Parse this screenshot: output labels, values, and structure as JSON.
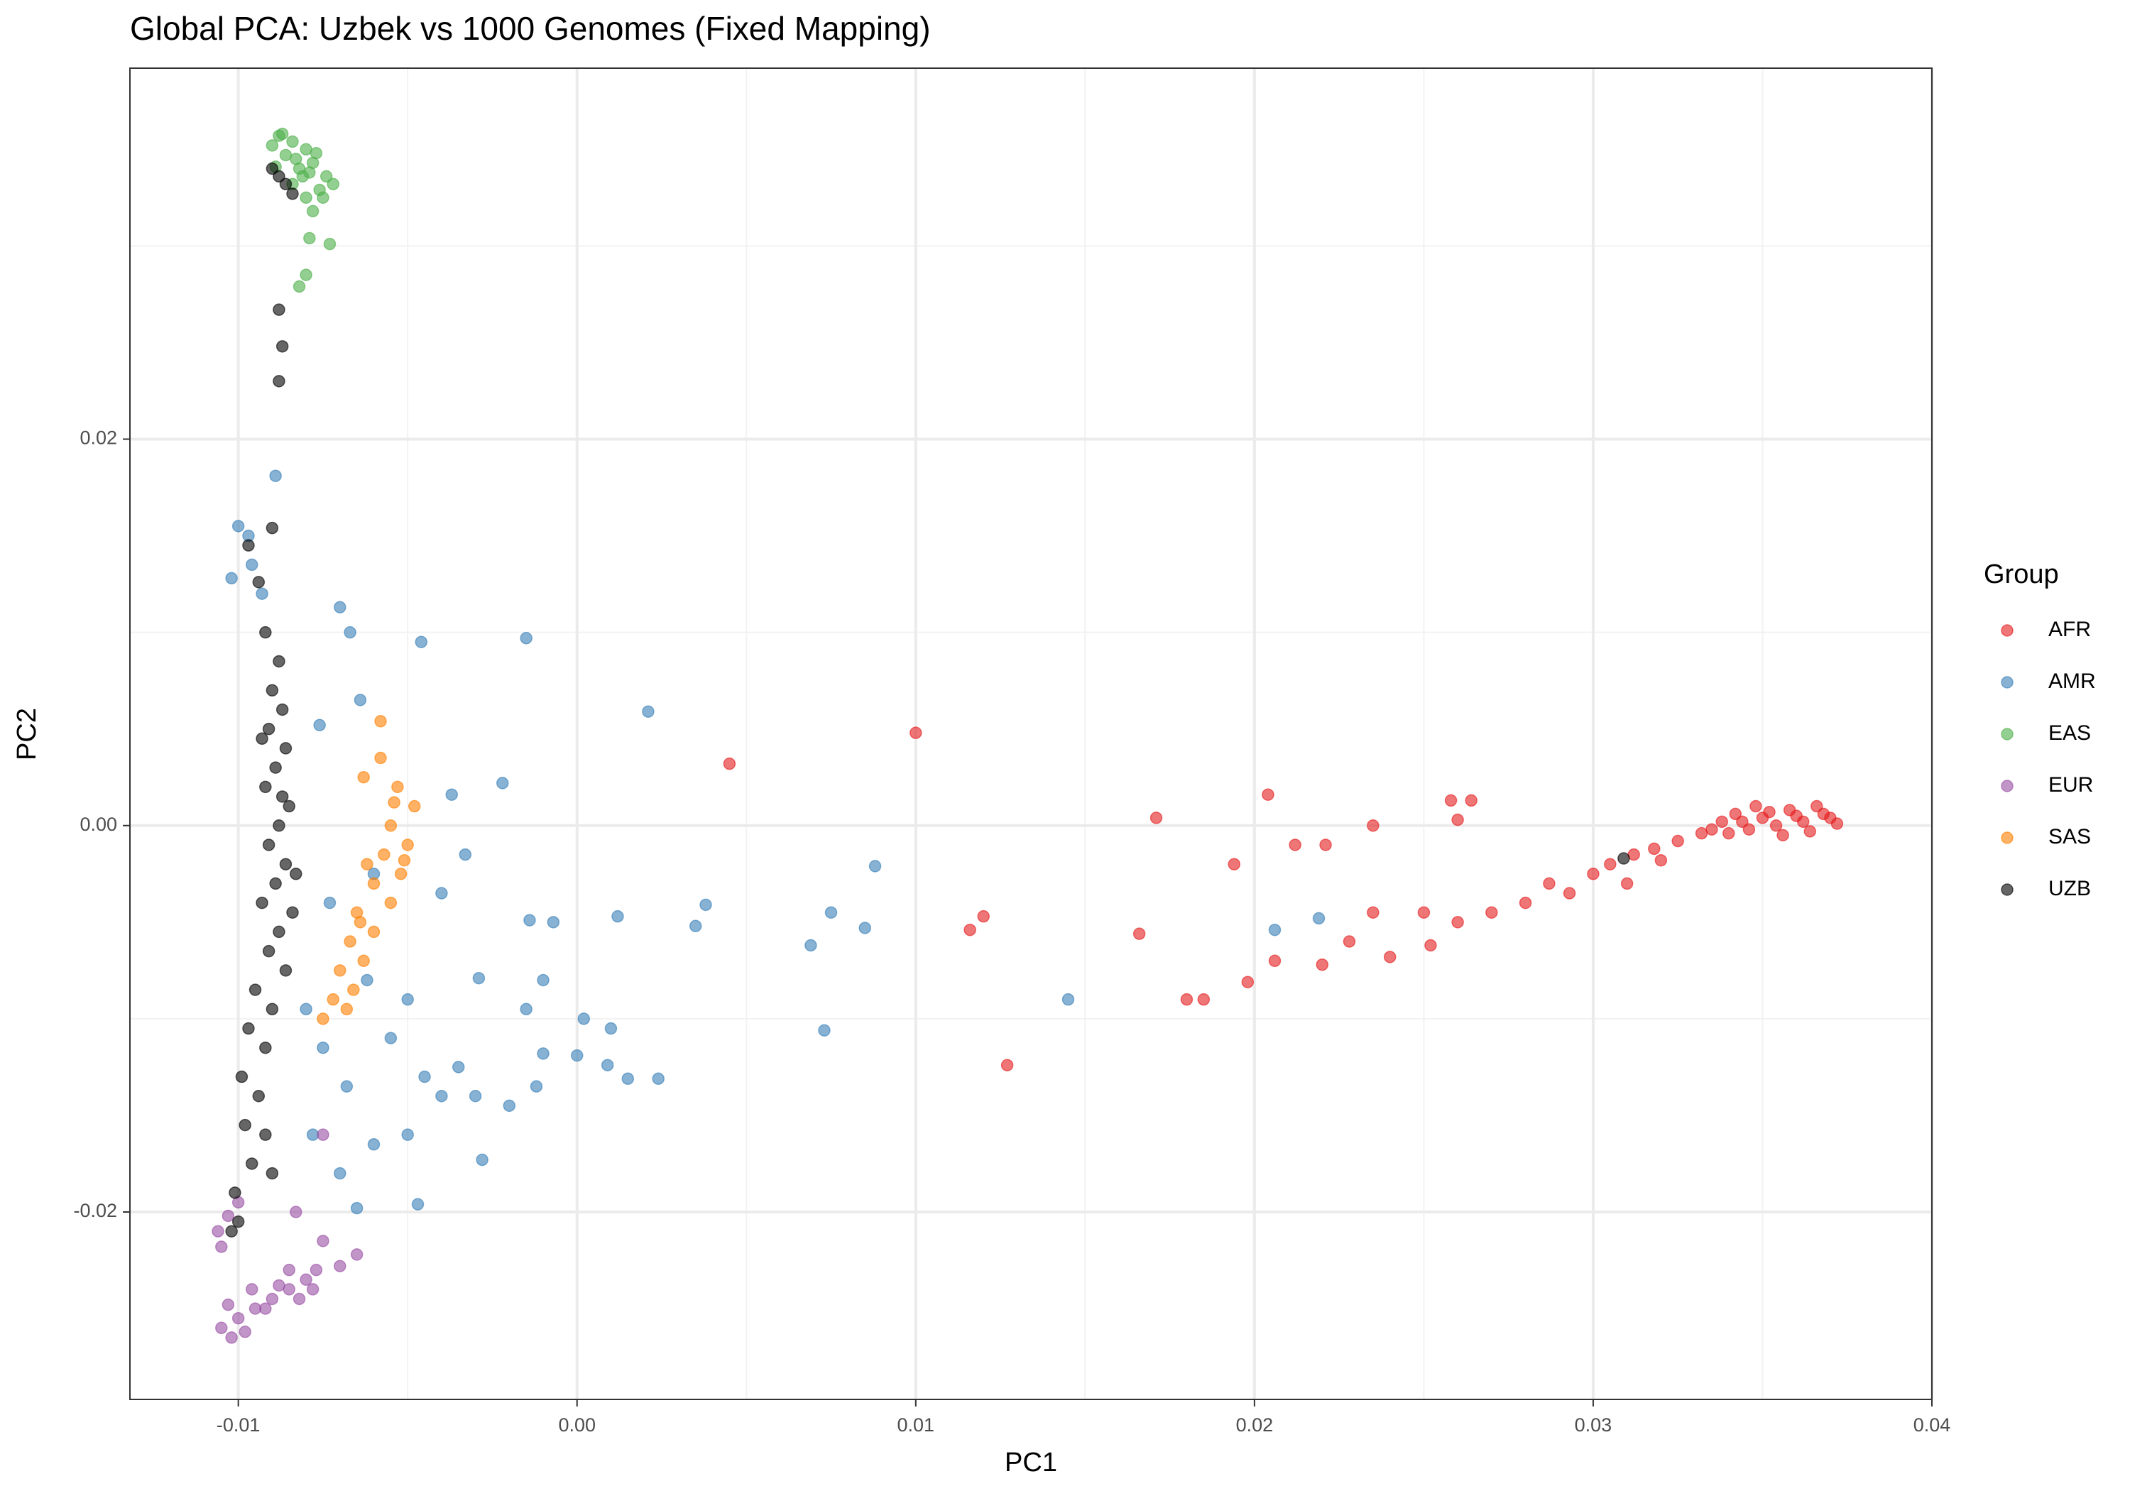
{
  "chart_data": {
    "type": "scatter",
    "title": "Global PCA: Uzbek vs 1000 Genomes (Fixed Mapping)",
    "x_label": "PC1",
    "y_label": "PC2",
    "legend_title": "Group",
    "legend_position": "right",
    "grid": true,
    "xlim": [
      -0.0132,
      0.04
    ],
    "ylim": [
      -0.0297,
      0.0392
    ],
    "xticks": [
      -0.01,
      {
        "value": 0,
        "label": "0.00"
      },
      0.01,
      0.02,
      0.03,
      0.04
    ],
    "yticks": [
      -0.02,
      {
        "value": 0,
        "label": "0.00"
      },
      0.02
    ],
    "series": [
      {
        "name": "AFR",
        "color": "#e41a1c",
        "x": [
          0.0045,
          0.01,
          0.0116,
          0.012,
          0.0127,
          0.0166,
          0.0171,
          0.018,
          0.0185,
          0.0194,
          0.0198,
          0.0204,
          0.0206,
          0.0212,
          0.0221,
          0.0235,
          0.0258,
          0.0264,
          0.026,
          0.022,
          0.0228,
          0.0235,
          0.024,
          0.025,
          0.0252,
          0.026,
          0.027,
          0.028,
          0.0287,
          0.0293,
          0.03,
          0.0305,
          0.0312,
          0.0318,
          0.0325,
          0.0332,
          0.032,
          0.031,
          0.0338,
          0.0342,
          0.0346,
          0.035,
          0.0354,
          0.0358,
          0.0362,
          0.0366,
          0.037,
          0.034,
          0.0348,
          0.0356,
          0.0364,
          0.0372,
          0.0344,
          0.0352,
          0.036,
          0.0368,
          0.0335
        ],
        "y": [
          0.0032,
          0.0048,
          -0.0054,
          -0.0047,
          -0.0124,
          -0.0056,
          0.0004,
          -0.009,
          -0.009,
          -0.002,
          -0.0081,
          0.0016,
          -0.007,
          -0.001,
          -0.001,
          0.0,
          0.0013,
          0.0013,
          0.0003,
          -0.0072,
          -0.006,
          -0.0045,
          -0.0068,
          -0.0045,
          -0.0062,
          -0.005,
          -0.0045,
          -0.004,
          -0.003,
          -0.0035,
          -0.0025,
          -0.002,
          -0.0015,
          -0.0012,
          -0.0008,
          -0.0004,
          -0.0018,
          -0.003,
          0.0002,
          0.0006,
          -0.0002,
          0.0004,
          0.0,
          0.0008,
          0.0002,
          0.001,
          0.0004,
          -0.0004,
          0.001,
          -0.0005,
          -0.0003,
          0.0001,
          0.0002,
          0.0007,
          0.0005,
          0.0006,
          -0.0002
        ]
      },
      {
        "name": "AMR",
        "color": "#377eb8",
        "x": [
          -0.01,
          -0.0097,
          -0.0102,
          -0.0096,
          -0.0093,
          -0.0089,
          -0.007,
          -0.0067,
          -0.0046,
          -0.0015,
          0.0021,
          -0.0076,
          -0.0022,
          -0.0037,
          -0.0033,
          -0.004,
          -0.006,
          0.0088,
          0.0038,
          0.0075,
          0.0085,
          0.0035,
          0.0069,
          0.0012,
          -0.0007,
          -0.0014,
          0.0145,
          0.0073,
          0.0219,
          0.0206,
          0.0024,
          0.0015,
          0.0009,
          0.0,
          -0.001,
          -0.002,
          -0.003,
          -0.004,
          -0.005,
          -0.006,
          -0.007,
          -0.0047,
          -0.0065,
          -0.0028,
          -0.0045,
          -0.0055,
          -0.0075,
          -0.008,
          -0.0062,
          -0.005,
          -0.0029,
          -0.001,
          0.0002,
          0.001,
          -0.0015,
          -0.0012,
          -0.0035,
          -0.0068,
          -0.0078,
          -0.0073,
          -0.0064
        ],
        "y": [
          0.0155,
          0.015,
          0.0128,
          0.0135,
          0.012,
          0.0181,
          0.0113,
          0.01,
          0.0095,
          0.0097,
          0.0059,
          0.0052,
          0.0022,
          0.0016,
          -0.0015,
          -0.0035,
          -0.0025,
          -0.0021,
          -0.0041,
          -0.0045,
          -0.0053,
          -0.0052,
          -0.0062,
          -0.0047,
          -0.005,
          -0.0049,
          -0.009,
          -0.0106,
          -0.0048,
          -0.0054,
          -0.0131,
          -0.0131,
          -0.0124,
          -0.0119,
          -0.0118,
          -0.0145,
          -0.014,
          -0.014,
          -0.016,
          -0.0165,
          -0.018,
          -0.0196,
          -0.0198,
          -0.0173,
          -0.013,
          -0.011,
          -0.0115,
          -0.0095,
          -0.008,
          -0.009,
          -0.0079,
          -0.008,
          -0.01,
          -0.0105,
          -0.0095,
          -0.0135,
          -0.0125,
          -0.0135,
          -0.016,
          -0.004,
          0.0065
        ]
      },
      {
        "name": "EAS",
        "color": "#4daf4a",
        "x": [
          -0.0088,
          -0.0084,
          -0.008,
          -0.0086,
          -0.0078,
          -0.0082,
          -0.0074,
          -0.009,
          -0.0076,
          -0.0084,
          -0.008,
          -0.0072,
          -0.0078,
          -0.0087,
          -0.0083,
          -0.0079,
          -0.0075,
          -0.0089,
          -0.0081,
          -0.0077,
          -0.0079,
          -0.0073,
          -0.008,
          -0.0082
        ],
        "y": [
          0.0357,
          0.0354,
          0.035,
          0.0347,
          0.0343,
          0.034,
          0.0336,
          0.0352,
          0.0329,
          0.0332,
          0.0325,
          0.0332,
          0.0318,
          0.0358,
          0.0345,
          0.0338,
          0.0325,
          0.0341,
          0.0336,
          0.0348,
          0.0304,
          0.0301,
          0.0285,
          0.0279
        ]
      },
      {
        "name": "EUR",
        "color": "#984ea3",
        "x": [
          -0.0105,
          -0.01,
          -0.0095,
          -0.009,
          -0.0085,
          -0.008,
          -0.0077,
          -0.0102,
          -0.0098,
          -0.0092,
          -0.0088,
          -0.0082,
          -0.0078,
          -0.0103,
          -0.0096,
          -0.0085,
          -0.0106,
          -0.0103,
          -0.0105,
          -0.01,
          -0.007,
          -0.0065,
          -0.0075,
          -0.0083,
          -0.0075
        ],
        "y": [
          -0.026,
          -0.0255,
          -0.025,
          -0.0245,
          -0.024,
          -0.0235,
          -0.023,
          -0.0265,
          -0.0262,
          -0.025,
          -0.0238,
          -0.0245,
          -0.024,
          -0.0248,
          -0.024,
          -0.023,
          -0.021,
          -0.0202,
          -0.0218,
          -0.0195,
          -0.0228,
          -0.0222,
          -0.0215,
          -0.02,
          -0.016
        ]
      },
      {
        "name": "SAS",
        "color": "#ff7f00",
        "x": [
          -0.0063,
          -0.0058,
          -0.0053,
          -0.0048,
          -0.0058,
          -0.0055,
          -0.005,
          -0.0057,
          -0.0052,
          -0.006,
          -0.0055,
          -0.0065,
          -0.006,
          -0.0067,
          -0.0063,
          -0.007,
          -0.0066,
          -0.0072,
          -0.0075,
          -0.0068,
          -0.0062,
          -0.0054,
          -0.0051,
          -0.0064
        ],
        "y": [
          0.0025,
          0.0035,
          0.002,
          0.001,
          0.0054,
          0.0,
          -0.001,
          -0.0015,
          -0.0025,
          -0.003,
          -0.004,
          -0.0045,
          -0.0055,
          -0.006,
          -0.007,
          -0.0075,
          -0.0085,
          -0.009,
          -0.01,
          -0.0095,
          -0.002,
          0.0012,
          -0.0018,
          -0.005
        ]
      },
      {
        "name": "UZB",
        "color": "#000000",
        "x": [
          -0.0088,
          -0.0086,
          -0.0084,
          -0.009,
          -0.0088,
          -0.0087,
          -0.0088,
          -0.009,
          -0.0097,
          -0.0094,
          -0.0092,
          -0.0088,
          -0.009,
          -0.0087,
          -0.0091,
          -0.0086,
          -0.0089,
          -0.0092,
          -0.0085,
          -0.0088,
          -0.0091,
          -0.0086,
          -0.0089,
          -0.0093,
          -0.0084,
          -0.0088,
          -0.0091,
          -0.0086,
          -0.0095,
          -0.009,
          -0.0097,
          -0.0092,
          -0.0099,
          -0.0094,
          -0.0098,
          -0.0092,
          -0.0096,
          -0.0101,
          -0.01,
          -0.0102,
          -0.009,
          -0.0087,
          -0.0083,
          -0.0093,
          0.0309
        ],
        "y": [
          0.0336,
          0.0332,
          0.0327,
          0.034,
          0.0267,
          0.0248,
          0.023,
          0.0154,
          0.0145,
          0.0126,
          0.01,
          0.0085,
          0.007,
          0.006,
          0.005,
          0.004,
          0.003,
          0.002,
          0.001,
          0.0,
          -0.001,
          -0.002,
          -0.003,
          -0.004,
          -0.0045,
          -0.0055,
          -0.0065,
          -0.0075,
          -0.0085,
          -0.0095,
          -0.0105,
          -0.0115,
          -0.013,
          -0.014,
          -0.0155,
          -0.016,
          -0.0175,
          -0.019,
          -0.0205,
          -0.021,
          -0.018,
          0.0015,
          -0.0025,
          0.0045,
          -0.0017
        ]
      }
    ]
  }
}
